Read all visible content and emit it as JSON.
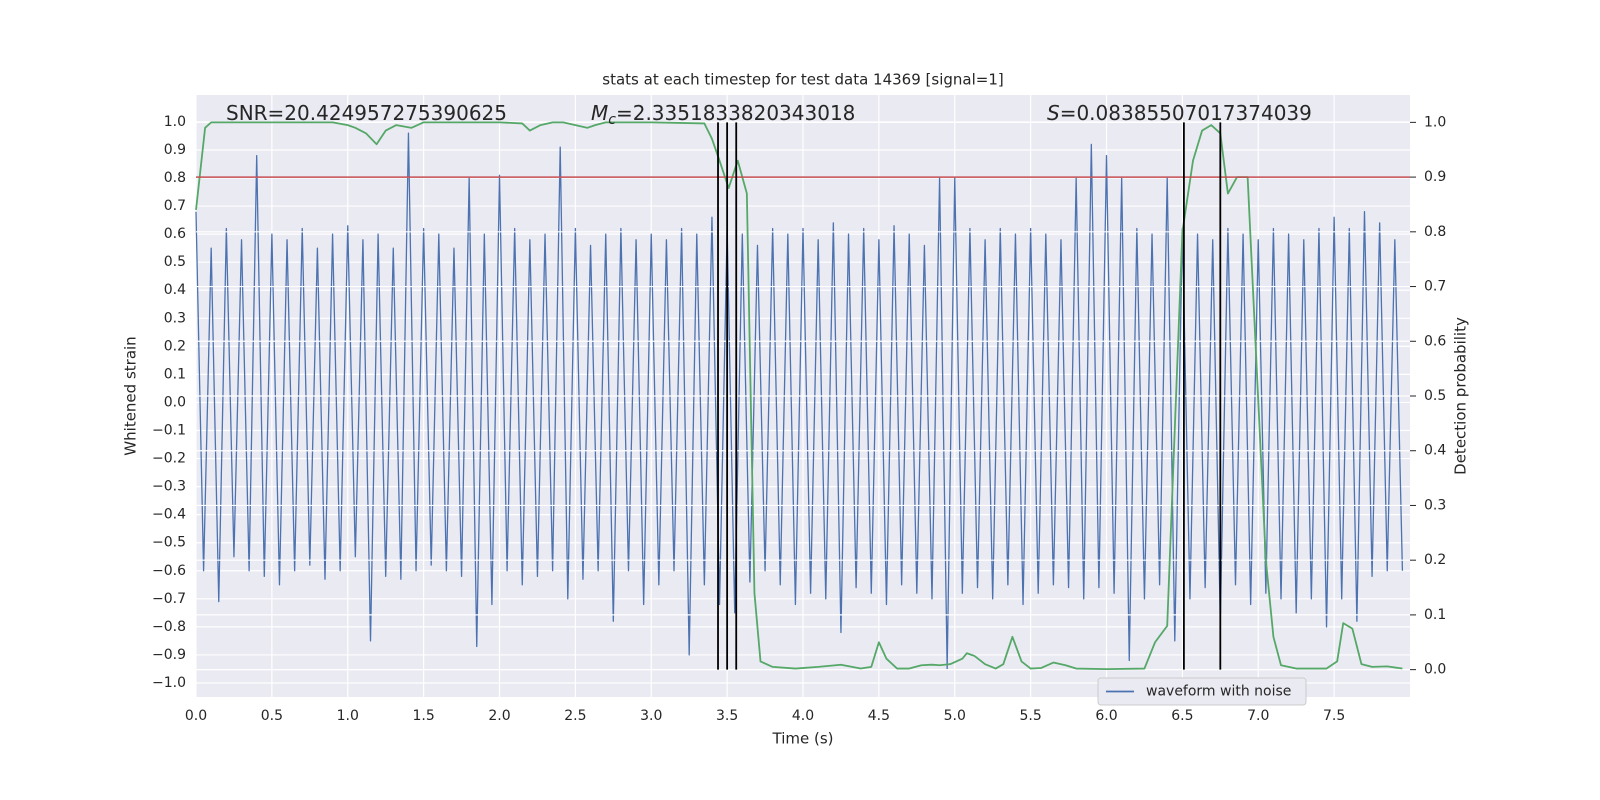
{
  "chart_data": {
    "type": "line",
    "title": "stats at each timestep for test data 14369 [signal=1]",
    "xlabel": "Time (s)",
    "ylabel": "Whitened strain",
    "y2label": "Detection probability",
    "annotations": [
      {
        "text": "SNR=20.424957275390625"
      },
      {
        "symbol": "M",
        "subscript": "c",
        "text": "=2.3351833820343018"
      },
      {
        "symbol": "S",
        "text": "=0.08385507017374039"
      }
    ],
    "xlim": [
      0,
      8.0
    ],
    "ylim": [
      -1.05,
      1.096
    ],
    "y2lim": [
      -0.05,
      1.05
    ],
    "xticks": [
      {
        "value": 0,
        "label": "0.0"
      },
      0.5,
      {
        "value": 1,
        "label": "1.0"
      },
      1.5,
      {
        "value": 2,
        "label": "2.0"
      },
      2.5,
      {
        "value": 3,
        "label": "3.0"
      },
      3.5,
      {
        "value": 4,
        "label": "4.0"
      },
      4.5,
      {
        "value": 5,
        "label": "5.0"
      },
      5.5,
      {
        "value": 6,
        "label": "6.0"
      },
      6.5,
      {
        "value": 7,
        "label": "7.0"
      },
      7.5
    ],
    "yticks": [
      {
        "value": -1.0,
        "label": "−1.0"
      },
      {
        "value": -0.9,
        "label": "−0.9"
      },
      {
        "value": -0.8,
        "label": "−0.8"
      },
      {
        "value": -0.7,
        "label": "−0.7"
      },
      {
        "value": -0.6,
        "label": "−0.6"
      },
      {
        "value": -0.5,
        "label": "−0.5"
      },
      {
        "value": -0.4,
        "label": "−0.4"
      },
      {
        "value": -0.3,
        "label": "−0.3"
      },
      {
        "value": -0.2,
        "label": "−0.2"
      },
      {
        "value": -0.1,
        "label": "−0.1"
      },
      {
        "value": 0,
        "label": "0.0"
      },
      0.1,
      0.2,
      0.3,
      0.4,
      0.5,
      0.6,
      0.7,
      0.8,
      0.9,
      {
        "value": 1,
        "label": "1.0"
      }
    ],
    "y2ticks": [
      {
        "value": 0,
        "label": "0.0"
      },
      0.1,
      0.2,
      0.3,
      0.4,
      0.5,
      0.6,
      0.7,
      0.8,
      0.9,
      {
        "value": 1,
        "label": "1.0"
      }
    ],
    "grid": true,
    "legend": "lower right",
    "series": [
      {
        "name": "waveform with noise",
        "color": "#4c72b0",
        "x": [
          0,
          0.05,
          0.1,
          0.15,
          0.2,
          0.25,
          0.3,
          0.35,
          0.4,
          0.45,
          0.5,
          0.55,
          0.6,
          0.65,
          0.7,
          0.75,
          0.8,
          0.85,
          0.9,
          0.95,
          1,
          1.05,
          1.1,
          1.15,
          1.2,
          1.25,
          1.3,
          1.35,
          1.4,
          1.45,
          1.5,
          1.55,
          1.6,
          1.65,
          1.7,
          1.75,
          1.8,
          1.85,
          1.9,
          1.95,
          2,
          2.05,
          2.1,
          2.15,
          2.2,
          2.25,
          2.3,
          2.35,
          2.4,
          2.45,
          2.5,
          2.55,
          2.6,
          2.65,
          2.7,
          2.75,
          2.8,
          2.85,
          2.9,
          2.95,
          3,
          3.05,
          3.1,
          3.15,
          3.2,
          3.25,
          3.3,
          3.35,
          3.4,
          3.45,
          3.5,
          3.55,
          3.6,
          3.65,
          3.7,
          3.75,
          3.8,
          3.85,
          3.9,
          3.95,
          4,
          4.05,
          4.1,
          4.15,
          4.2,
          4.25,
          4.3,
          4.35,
          4.4,
          4.45,
          4.5,
          4.55,
          4.6,
          4.65,
          4.7,
          4.75,
          4.8,
          4.85,
          4.9,
          4.95,
          5,
          5.05,
          5.1,
          5.15,
          5.2,
          5.25,
          5.3,
          5.35,
          5.4,
          5.45,
          5.5,
          5.55,
          5.6,
          5.65,
          5.7,
          5.75,
          5.8,
          5.85,
          5.9,
          5.95,
          6,
          6.05,
          6.1,
          6.15,
          6.2,
          6.25,
          6.3,
          6.35,
          6.4,
          6.45,
          6.5,
          6.55,
          6.6,
          6.65,
          6.7,
          6.75,
          6.8,
          6.85,
          6.9,
          6.95,
          7,
          7.05,
          7.1,
          7.15,
          7.2,
          7.25,
          7.3,
          7.35,
          7.4,
          7.45,
          7.5,
          7.55,
          7.6,
          7.65,
          7.7,
          7.75,
          7.8,
          7.85,
          7.9,
          7.95
        ],
        "values": [
          0.68,
          -0.6,
          0.55,
          -0.71,
          0.62,
          -0.55,
          0.58,
          -0.6,
          0.88,
          -0.62,
          0.6,
          -0.65,
          0.58,
          -0.6,
          0.62,
          -0.58,
          0.55,
          -0.63,
          0.6,
          -0.6,
          0.63,
          -0.55,
          0.58,
          -0.85,
          0.6,
          -0.62,
          0.55,
          -0.63,
          0.96,
          -0.6,
          0.62,
          -0.58,
          0.6,
          -0.6,
          0.55,
          -0.62,
          0.8,
          -0.87,
          0.6,
          -0.72,
          0.81,
          -0.6,
          0.62,
          -0.65,
          0.58,
          -0.62,
          0.6,
          -0.6,
          0.91,
          -0.7,
          0.62,
          -0.63,
          0.56,
          -0.6,
          0.6,
          -0.78,
          0.62,
          -0.6,
          0.58,
          -0.72,
          0.6,
          -0.65,
          0.58,
          -0.6,
          0.62,
          -0.9,
          0.6,
          -0.65,
          0.66,
          -0.72,
          0.62,
          -0.75,
          0.6,
          -0.64,
          0.56,
          -0.6,
          0.62,
          -0.65,
          0.6,
          -0.72,
          0.62,
          -0.68,
          0.58,
          -0.7,
          0.64,
          -0.82,
          0.6,
          -0.66,
          0.62,
          -0.68,
          0.58,
          -0.72,
          0.63,
          -0.65,
          0.6,
          -0.68,
          0.56,
          -0.7,
          0.8,
          -0.95,
          0.8,
          -0.68,
          0.62,
          -0.66,
          0.58,
          -0.7,
          0.62,
          -0.65,
          0.6,
          -0.72,
          0.62,
          -0.68,
          0.6,
          -0.65,
          0.58,
          -0.66,
          0.8,
          -0.7,
          0.92,
          -0.66,
          0.88,
          -0.68,
          0.8,
          -0.92,
          0.62,
          -0.7,
          0.6,
          -0.65,
          0.8,
          -0.85,
          0.62,
          -0.7,
          0.6,
          -0.66,
          0.58,
          -0.78,
          0.62,
          -0.65,
          0.6,
          -0.72,
          0.58,
          -0.68,
          0.62,
          -0.7,
          0.6,
          -0.75,
          0.58,
          -0.7,
          0.62,
          -0.8,
          0.66,
          -0.7,
          0.62,
          -0.78,
          0.68,
          -0.62,
          0.64,
          -0.6,
          0.58,
          -0.6
        ]
      },
      {
        "color": "#55a868",
        "axis": "y2",
        "x": [
          0,
          0.06,
          0.1,
          0.5,
          0.9,
          1,
          1.05,
          1.12,
          1.19,
          1.25,
          1.32,
          1.42,
          1.5,
          2,
          2.15,
          2.2,
          2.27,
          2.35,
          2.42,
          2.5,
          2.58,
          2.63,
          2.7,
          3,
          3.35,
          3.4,
          3.45,
          3.51,
          3.57,
          3.63,
          3.68,
          3.72,
          3.8,
          3.95,
          4.1,
          4.25,
          4.38,
          4.45,
          4.5,
          4.55,
          4.62,
          4.7,
          4.78,
          4.85,
          4.9,
          4.97,
          5.05,
          5.08,
          5.13,
          5.2,
          5.27,
          5.32,
          5.38,
          5.44,
          5.5,
          5.57,
          5.65,
          5.73,
          5.8,
          6,
          6.25,
          6.32,
          6.4,
          6.5,
          6.57,
          6.63,
          6.69,
          6.75,
          6.8,
          6.86,
          6.93,
          7.05,
          7.1,
          7.15,
          7.25,
          7.45,
          7.52,
          7.56,
          7.62,
          7.68,
          7.75,
          7.85,
          7.95
        ],
        "values": [
          0.84,
          0.99,
          1,
          1,
          1,
          0.995,
          0.99,
          0.98,
          0.96,
          0.985,
          0.995,
          0.99,
          1,
          1,
          0.998,
          0.985,
          0.995,
          1,
          1,
          0.995,
          0.99,
          0.995,
          1,
          1,
          0.998,
          0.97,
          0.93,
          0.88,
          0.93,
          0.87,
          0.14,
          0.015,
          0.005,
          0.002,
          0.005,
          0.009,
          0.002,
          0.005,
          0.05,
          0.02,
          0.002,
          0.002,
          0.008,
          0.009,
          0.008,
          0.01,
          0.02,
          0.03,
          0.025,
          0.01,
          0.002,
          0.01,
          0.06,
          0.015,
          0.002,
          0.003,
          0.013,
          0.008,
          0.002,
          0.001,
          0.002,
          0.05,
          0.08,
          0.8,
          0.93,
          0.985,
          0.995,
          0.98,
          0.87,
          0.9,
          0.9,
          0.2,
          0.06,
          0.008,
          0.002,
          0.002,
          0.015,
          0.085,
          0.075,
          0.01,
          0.005,
          0.006,
          0.002
        ]
      }
    ],
    "hlines": [
      {
        "value": 0.9,
        "axis": "y2",
        "color": "#c44e52"
      }
    ],
    "vlines": {
      "x": [
        3.44,
        3.5,
        3.56,
        6.51,
        6.75
      ],
      "y2range": [
        0,
        1
      ],
      "color": "#000000"
    }
  }
}
